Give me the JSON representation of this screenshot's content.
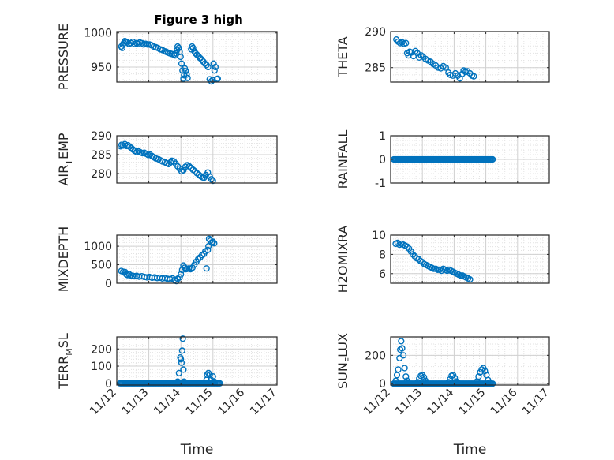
{
  "chart_data": [
    {
      "type": "scatter",
      "id": "pressure",
      "title": "Figure 3 high",
      "ylabel": "PRESSURE",
      "ylim": [
        928,
        1002
      ],
      "yticks": [
        950,
        1000
      ],
      "xlim": [
        0,
        5
      ],
      "xticks": [
        0,
        1,
        2,
        3,
        4,
        5
      ],
      "xticklabels": [],
      "marker_color": "#0072BD",
      "grid": "on",
      "points": [
        [
          0.14,
          980
        ],
        [
          0.17,
          978
        ],
        [
          0.19,
          983
        ],
        [
          0.22,
          985
        ],
        [
          0.25,
          988
        ],
        [
          0.28,
          987
        ],
        [
          0.33,
          986
        ],
        [
          0.38,
          984
        ],
        [
          0.44,
          985
        ],
        [
          0.5,
          987
        ],
        [
          0.56,
          984
        ],
        [
          0.62,
          985
        ],
        [
          0.68,
          984
        ],
        [
          0.72,
          986
        ],
        [
          0.78,
          985
        ],
        [
          0.84,
          983
        ],
        [
          0.9,
          984
        ],
        [
          0.96,
          983
        ],
        [
          1.02,
          983
        ],
        [
          1.08,
          982
        ],
        [
          1.15,
          980
        ],
        [
          1.22,
          979
        ],
        [
          1.28,
          978
        ],
        [
          1.35,
          976
        ],
        [
          1.42,
          975
        ],
        [
          1.5,
          973
        ],
        [
          1.55,
          972
        ],
        [
          1.6,
          971
        ],
        [
          1.66,
          970
        ],
        [
          1.72,
          969
        ],
        [
          1.78,
          968
        ],
        [
          1.82,
          967
        ],
        [
          1.86,
          970
        ],
        [
          1.88,
          975
        ],
        [
          1.9,
          980
        ],
        [
          1.93,
          978
        ],
        [
          1.96,
          972
        ],
        [
          1.99,
          965
        ],
        [
          2.02,
          955
        ],
        [
          2.05,
          945
        ],
        [
          2.08,
          933
        ],
        [
          2.1,
          938
        ],
        [
          2.12,
          948
        ],
        [
          2.15,
          944
        ],
        [
          2.18,
          939
        ],
        [
          2.21,
          934
        ],
        [
          2.32,
          976
        ],
        [
          2.35,
          980
        ],
        [
          2.38,
          978
        ],
        [
          2.42,
          973
        ],
        [
          2.46,
          970
        ],
        [
          2.5,
          968
        ],
        [
          2.55,
          966
        ],
        [
          2.6,
          963
        ],
        [
          2.65,
          961
        ],
        [
          2.7,
          958
        ],
        [
          2.75,
          955
        ],
        [
          2.8,
          953
        ],
        [
          2.85,
          950
        ],
        [
          2.9,
          932
        ],
        [
          2.95,
          929
        ],
        [
          2.99,
          931
        ],
        [
          3.02,
          955
        ],
        [
          3.05,
          945
        ],
        [
          3.08,
          950
        ],
        [
          3.12,
          932
        ],
        [
          3.15,
          933
        ]
      ]
    },
    {
      "type": "scatter",
      "id": "theta",
      "ylabel": "THETA",
      "ylim": [
        283,
        290
      ],
      "yticks": [
        285,
        290
      ],
      "xlim": [
        0,
        5
      ],
      "xticks": [
        0,
        1,
        2,
        3,
        4,
        5
      ],
      "xticklabels": [],
      "marker_color": "#0072BD",
      "grid": "on",
      "points": [
        [
          0.18,
          288.9
        ],
        [
          0.24,
          288.6
        ],
        [
          0.3,
          288.4
        ],
        [
          0.36,
          288.5
        ],
        [
          0.42,
          288.3
        ],
        [
          0.48,
          288.4
        ],
        [
          0.52,
          287.0
        ],
        [
          0.56,
          286.7
        ],
        [
          0.6,
          287.2
        ],
        [
          0.66,
          287.1
        ],
        [
          0.72,
          286.6
        ],
        [
          0.78,
          287.3
        ],
        [
          0.84,
          287.0
        ],
        [
          0.9,
          286.4
        ],
        [
          0.96,
          286.7
        ],
        [
          1.02,
          286.5
        ],
        [
          1.1,
          286.2
        ],
        [
          1.18,
          286.0
        ],
        [
          1.26,
          285.8
        ],
        [
          1.34,
          285.5
        ],
        [
          1.42,
          285.3
        ],
        [
          1.5,
          285.0
        ],
        [
          1.58,
          284.9
        ],
        [
          1.66,
          285.2
        ],
        [
          1.74,
          285.0
        ],
        [
          1.82,
          284.3
        ],
        [
          1.88,
          284.0
        ],
        [
          1.96,
          283.9
        ],
        [
          2.04,
          284.2
        ],
        [
          2.12,
          283.9
        ],
        [
          2.18,
          283.5
        ],
        [
          2.25,
          284.1
        ],
        [
          2.3,
          284.6
        ],
        [
          2.36,
          284.4
        ],
        [
          2.42,
          284.5
        ],
        [
          2.5,
          284.2
        ],
        [
          2.56,
          283.9
        ],
        [
          2.62,
          283.8
        ]
      ]
    },
    {
      "type": "scatter",
      "id": "airtemp",
      "ylabel": "AIR",
      "ylabel_sub": "T",
      "ylabel_rest": "EMP",
      "ylim": [
        277.5,
        290
      ],
      "yticks": [
        280,
        285,
        290
      ],
      "xlim": [
        0,
        5
      ],
      "xticks": [
        0,
        1,
        2,
        3,
        4,
        5
      ],
      "xticklabels": [],
      "marker_color": "#0072BD",
      "grid": "on",
      "points": [
        [
          0.12,
          287.2
        ],
        [
          0.15,
          287.6
        ],
        [
          0.2,
          287.4
        ],
        [
          0.25,
          287.8
        ],
        [
          0.3,
          287.3
        ],
        [
          0.35,
          287.5
        ],
        [
          0.4,
          287.1
        ],
        [
          0.45,
          286.8
        ],
        [
          0.5,
          286.4
        ],
        [
          0.56,
          286.0
        ],
        [
          0.62,
          285.7
        ],
        [
          0.68,
          285.9
        ],
        [
          0.74,
          285.6
        ],
        [
          0.8,
          285.4
        ],
        [
          0.86,
          285.5
        ],
        [
          0.92,
          285.2
        ],
        [
          0.98,
          284.9
        ],
        [
          1.04,
          285.0
        ],
        [
          1.1,
          284.6
        ],
        [
          1.16,
          284.3
        ],
        [
          1.22,
          284.0
        ],
        [
          1.3,
          283.8
        ],
        [
          1.36,
          283.5
        ],
        [
          1.42,
          283.2
        ],
        [
          1.5,
          283.0
        ],
        [
          1.56,
          282.7
        ],
        [
          1.62,
          282.5
        ],
        [
          1.68,
          283.0
        ],
        [
          1.72,
          283.4
        ],
        [
          1.78,
          283.2
        ],
        [
          1.84,
          282.6
        ],
        [
          1.9,
          281.9
        ],
        [
          1.96,
          281.3
        ],
        [
          2.02,
          280.6
        ],
        [
          2.08,
          280.9
        ],
        [
          2.14,
          281.8
        ],
        [
          2.2,
          282.2
        ],
        [
          2.26,
          281.9
        ],
        [
          2.32,
          281.5
        ],
        [
          2.38,
          281.0
        ],
        [
          2.44,
          280.6
        ],
        [
          2.5,
          280.1
        ],
        [
          2.56,
          279.7
        ],
        [
          2.62,
          279.3
        ],
        [
          2.68,
          279.0
        ],
        [
          2.72,
          278.9
        ],
        [
          2.78,
          279.6
        ],
        [
          2.84,
          280.3
        ],
        [
          2.9,
          279.2
        ],
        [
          2.95,
          278.5
        ],
        [
          3.0,
          278.1
        ]
      ]
    },
    {
      "type": "scatter",
      "id": "rainfall",
      "ylabel": "RAINFALL",
      "ylim": [
        -1,
        1
      ],
      "yticks": [
        -1,
        0,
        1
      ],
      "xlim": [
        0,
        5
      ],
      "xticks": [
        0,
        1,
        2,
        3,
        4,
        5
      ],
      "xticklabels": [],
      "marker_color": "#0072BD",
      "grid": "on",
      "x_range": [
        0.1,
        3.25
      ],
      "constant_value": 0
    },
    {
      "type": "scatter",
      "id": "mixdepth",
      "ylabel": "MIXDEPTH",
      "ylim": [
        0,
        1300
      ],
      "yticks": [
        0,
        500,
        1000
      ],
      "xlim": [
        0,
        5
      ],
      "xticks": [
        0,
        1,
        2,
        3,
        4,
        5
      ],
      "xticklabels": [],
      "marker_color": "#0072BD",
      "grid": "on",
      "points": [
        [
          0.14,
          330
        ],
        [
          0.2,
          310
        ],
        [
          0.26,
          300
        ],
        [
          0.3,
          240
        ],
        [
          0.34,
          220
        ],
        [
          0.38,
          250
        ],
        [
          0.44,
          210
        ],
        [
          0.5,
          200
        ],
        [
          0.56,
          190
        ],
        [
          0.62,
          200
        ],
        [
          0.7,
          180
        ],
        [
          0.78,
          190
        ],
        [
          0.86,
          170
        ],
        [
          0.94,
          160
        ],
        [
          1.02,
          170
        ],
        [
          1.1,
          150
        ],
        [
          1.18,
          160
        ],
        [
          1.26,
          140
        ],
        [
          1.34,
          150
        ],
        [
          1.42,
          130
        ],
        [
          1.5,
          140
        ],
        [
          1.58,
          120
        ],
        [
          1.66,
          110
        ],
        [
          1.74,
          130
        ],
        [
          1.8,
          90
        ],
        [
          1.86,
          60
        ],
        [
          1.9,
          120
        ],
        [
          1.96,
          160
        ],
        [
          2.0,
          240
        ],
        [
          2.04,
          360
        ],
        [
          2.08,
          480
        ],
        [
          2.12,
          420
        ],
        [
          2.16,
          380
        ],
        [
          2.2,
          390
        ],
        [
          2.25,
          400
        ],
        [
          2.3,
          380
        ],
        [
          2.36,
          420
        ],
        [
          2.42,
          500
        ],
        [
          2.48,
          580
        ],
        [
          2.54,
          650
        ],
        [
          2.6,
          700
        ],
        [
          2.66,
          760
        ],
        [
          2.72,
          790
        ],
        [
          2.76,
          860
        ],
        [
          2.8,
          400
        ],
        [
          2.84,
          900
        ],
        [
          2.86,
          1000
        ],
        [
          2.88,
          1200
        ],
        [
          2.92,
          1150
        ],
        [
          2.96,
          1100
        ],
        [
          3.0,
          1120
        ],
        [
          3.04,
          1080
        ]
      ]
    },
    {
      "type": "scatter",
      "id": "h2omixra",
      "ylabel": "H2OMIXRA",
      "ylim": [
        5,
        10
      ],
      "yticks": [
        6,
        8,
        10
      ],
      "xlim": [
        0,
        5
      ],
      "xticks": [
        0,
        1,
        2,
        3,
        4,
        5
      ],
      "xticklabels": [],
      "marker_color": "#0072BD",
      "grid": "on",
      "points": [
        [
          0.16,
          9.1
        ],
        [
          0.22,
          9.2
        ],
        [
          0.28,
          9.0
        ],
        [
          0.34,
          9.1
        ],
        [
          0.4,
          9.0
        ],
        [
          0.46,
          8.9
        ],
        [
          0.52,
          8.8
        ],
        [
          0.58,
          8.6
        ],
        [
          0.64,
          8.3
        ],
        [
          0.7,
          8.0
        ],
        [
          0.76,
          7.8
        ],
        [
          0.82,
          7.6
        ],
        [
          0.88,
          7.5
        ],
        [
          0.94,
          7.3
        ],
        [
          1.0,
          7.2
        ],
        [
          1.06,
          7.0
        ],
        [
          1.12,
          6.9
        ],
        [
          1.18,
          6.8
        ],
        [
          1.24,
          6.7
        ],
        [
          1.3,
          6.6
        ],
        [
          1.36,
          6.5
        ],
        [
          1.42,
          6.5
        ],
        [
          1.48,
          6.4
        ],
        [
          1.54,
          6.4
        ],
        [
          1.6,
          6.3
        ],
        [
          1.66,
          6.5
        ],
        [
          1.72,
          6.4
        ],
        [
          1.78,
          6.3
        ],
        [
          1.84,
          6.4
        ],
        [
          1.9,
          6.3
        ],
        [
          1.96,
          6.2
        ],
        [
          2.02,
          6.1
        ],
        [
          2.08,
          6.0
        ],
        [
          2.14,
          5.9
        ],
        [
          2.2,
          5.8
        ],
        [
          2.26,
          5.8
        ],
        [
          2.32,
          5.7
        ],
        [
          2.38,
          5.6
        ],
        [
          2.44,
          5.5
        ],
        [
          2.5,
          5.4
        ]
      ]
    },
    {
      "type": "scatter",
      "id": "terrmsl",
      "ylabel": "TERR",
      "ylabel_sub": "M",
      "ylabel_rest": "SL",
      "ylim": [
        -10,
        270
      ],
      "yticks": [
        0,
        100,
        200
      ],
      "xlim": [
        0,
        5
      ],
      "xticks": [
        0,
        1,
        2,
        3,
        4,
        5
      ],
      "xticklabels": [
        "11/12",
        "11/13",
        "11/14",
        "11/15",
        "11/16",
        "11/17"
      ],
      "xlabel": "Time",
      "marker_color": "#0072BD",
      "grid": "on",
      "flat_range": [
        0.1,
        3.25
      ],
      "flat_value": 0,
      "points": [
        [
          1.9,
          10
        ],
        [
          1.94,
          60
        ],
        [
          1.98,
          150
        ],
        [
          2.0,
          140
        ],
        [
          2.02,
          120
        ],
        [
          2.04,
          190
        ],
        [
          2.06,
          260
        ],
        [
          2.08,
          80
        ],
        [
          2.1,
          10
        ],
        [
          2.8,
          20
        ],
        [
          2.82,
          50
        ],
        [
          2.86,
          60
        ],
        [
          2.9,
          50
        ],
        [
          2.94,
          20
        ],
        [
          3.0,
          40
        ],
        [
          3.04,
          10
        ]
      ]
    },
    {
      "type": "scatter",
      "id": "sunflux",
      "ylabel": "SUN",
      "ylabel_sub": "F",
      "ylabel_rest": "LUX",
      "ylim": [
        -10,
        330
      ],
      "yticks": [
        0,
        200
      ],
      "xlim": [
        0,
        5
      ],
      "xticks": [
        0,
        1,
        2,
        3,
        4,
        5
      ],
      "xticklabels": [
        "11/12",
        "11/13",
        "11/14",
        "11/15",
        "11/16",
        "11/17"
      ],
      "xlabel": "Time",
      "marker_color": "#0072BD",
      "grid": "on",
      "flat_range": [
        0.1,
        3.25
      ],
      "flat_value": 0,
      "points": [
        [
          0.16,
          20
        ],
        [
          0.2,
          60
        ],
        [
          0.24,
          100
        ],
        [
          0.28,
          180
        ],
        [
          0.3,
          240
        ],
        [
          0.33,
          300
        ],
        [
          0.36,
          250
        ],
        [
          0.4,
          200
        ],
        [
          0.44,
          110
        ],
        [
          0.48,
          50
        ],
        [
          0.52,
          20
        ],
        [
          0.56,
          5
        ],
        [
          0.85,
          10
        ],
        [
          0.9,
          35
        ],
        [
          0.95,
          55
        ],
        [
          1.0,
          60
        ],
        [
          1.05,
          45
        ],
        [
          1.1,
          20
        ],
        [
          1.15,
          5
        ],
        [
          1.82,
          10
        ],
        [
          1.87,
          30
        ],
        [
          1.92,
          55
        ],
        [
          1.97,
          60
        ],
        [
          2.02,
          40
        ],
        [
          2.07,
          15
        ],
        [
          2.12,
          5
        ],
        [
          2.72,
          15
        ],
        [
          2.77,
          50
        ],
        [
          2.82,
          80
        ],
        [
          2.87,
          100
        ],
        [
          2.92,
          110
        ],
        [
          2.97,
          90
        ],
        [
          3.02,
          60
        ],
        [
          3.07,
          25
        ],
        [
          3.12,
          8
        ]
      ]
    }
  ]
}
